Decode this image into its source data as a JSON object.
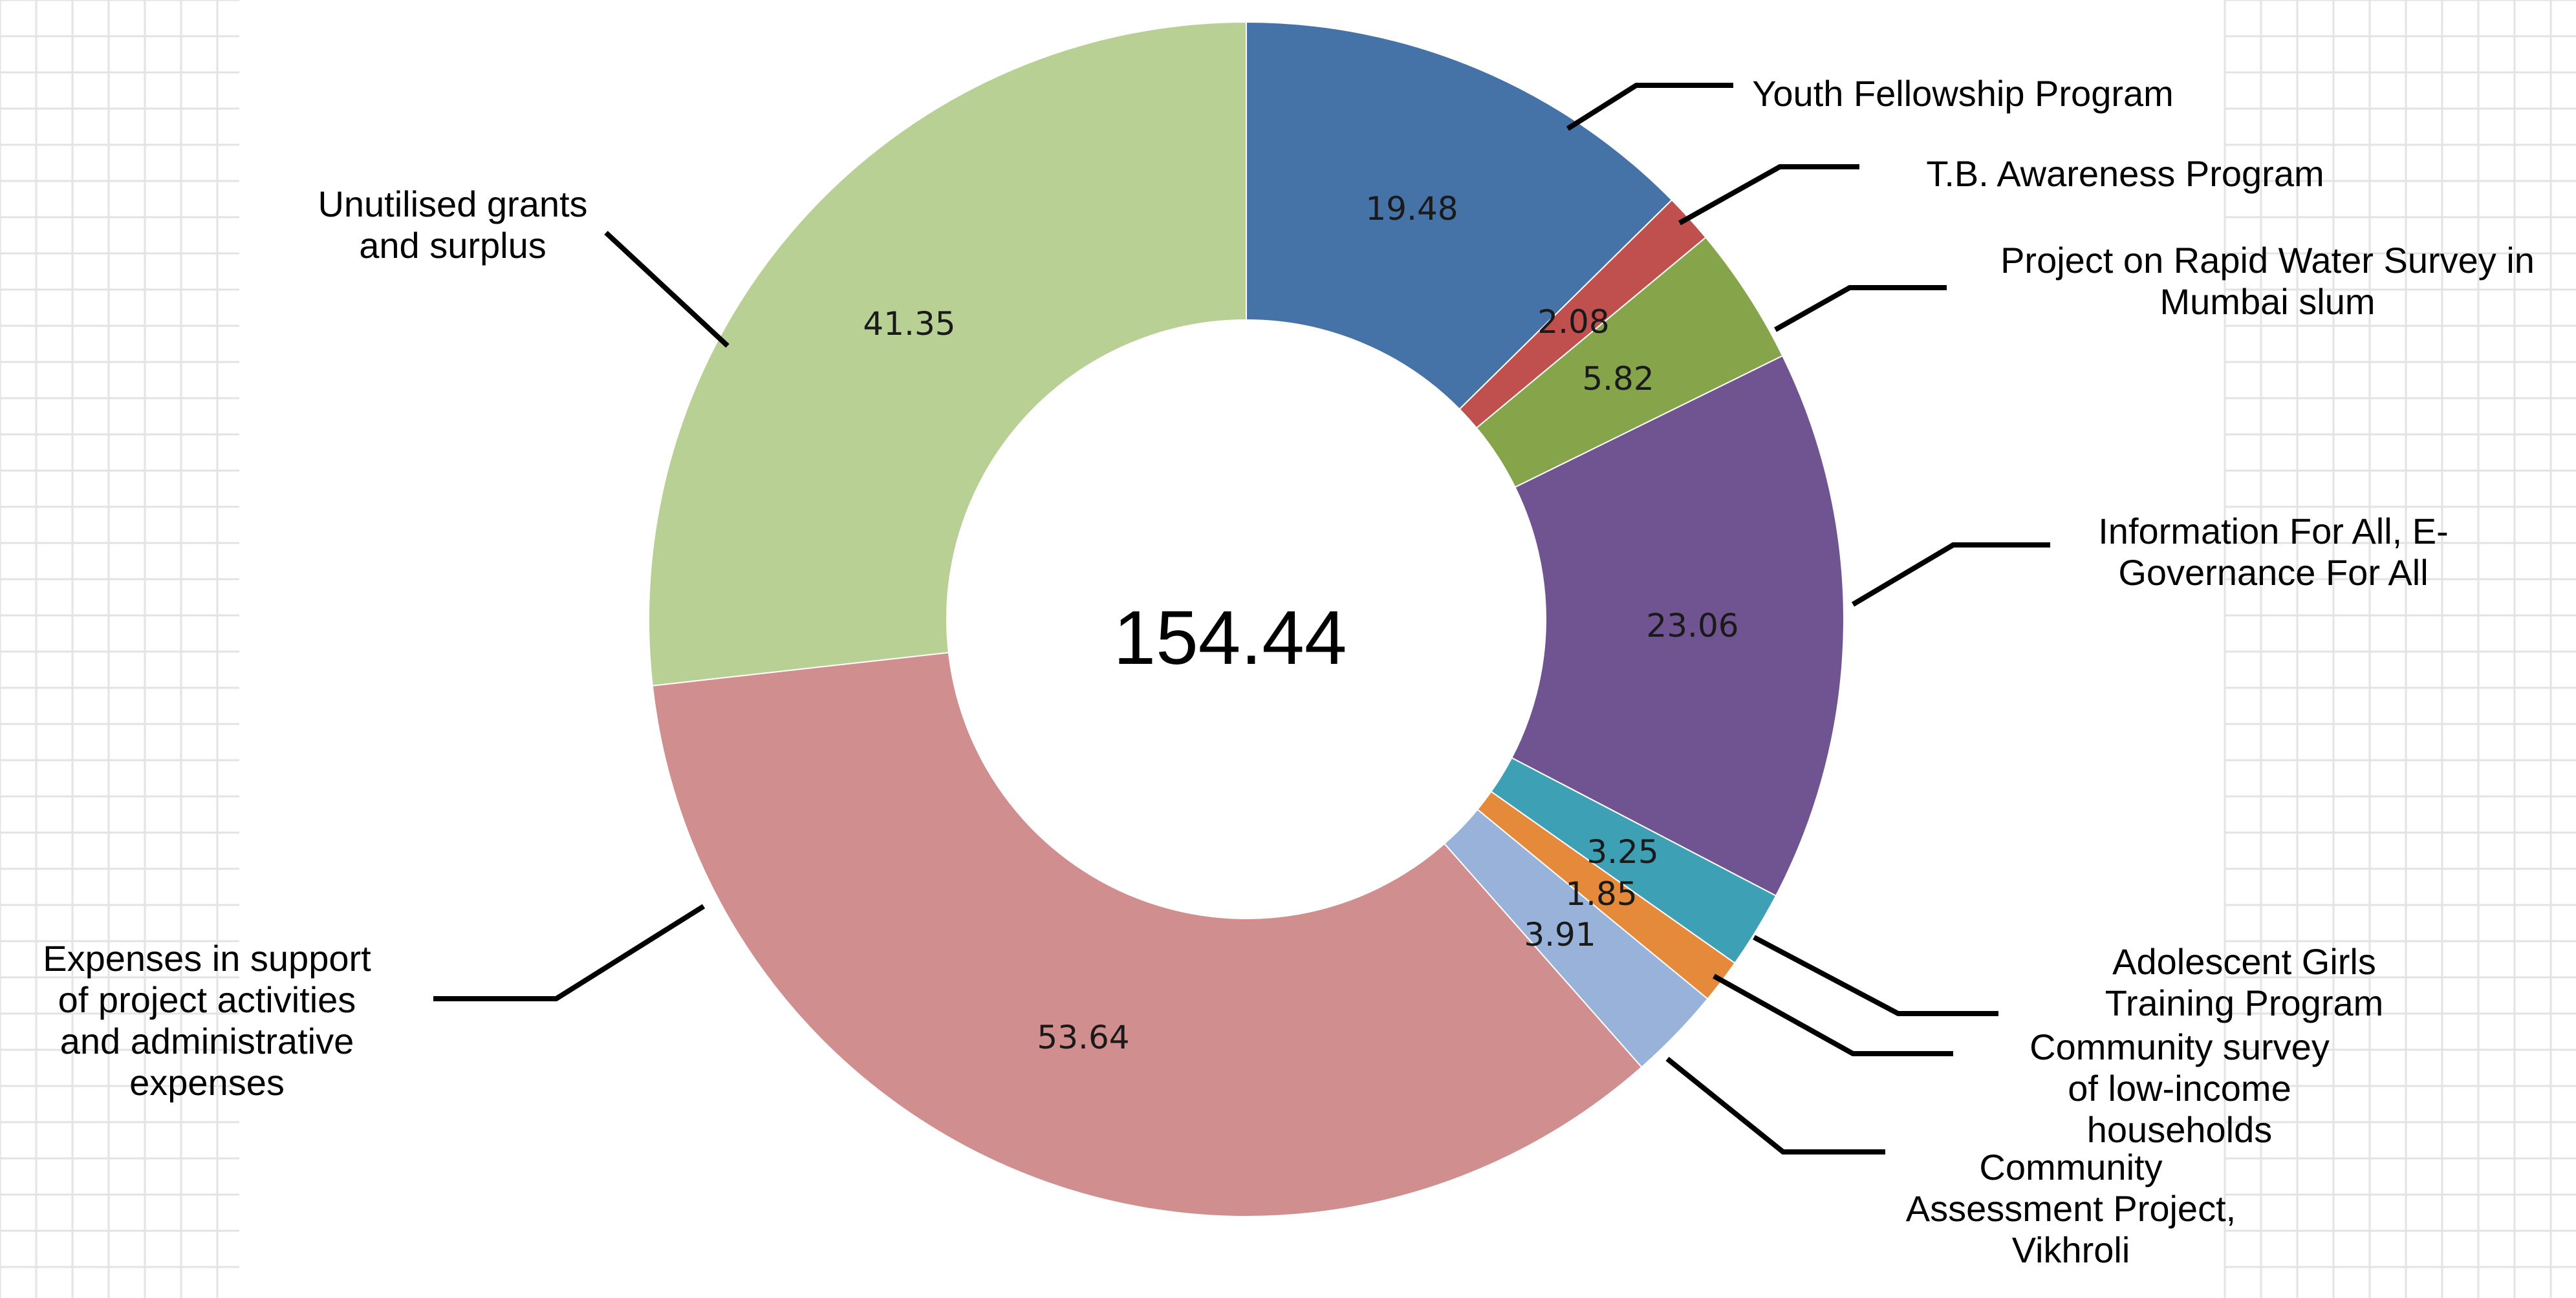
{
  "chart_data": {
    "type": "pie",
    "variant": "donut",
    "center_label": "154.44",
    "slices": [
      {
        "label": [
          "Youth Fellowship Program"
        ],
        "value": 19.48,
        "value_label": "19.48",
        "color": "#4572A7"
      },
      {
        "label": [
          "T.B. Awareness Program"
        ],
        "value": 2.08,
        "value_label": "2.08",
        "color": "#C0504D"
      },
      {
        "label": [
          "Project on Rapid Water Survey in",
          "Mumbai slum"
        ],
        "value": 5.82,
        "value_label": "5.82",
        "color": "#86A44A"
      },
      {
        "label": [
          "Information For All, E-",
          "Governance For All"
        ],
        "value": 23.06,
        "value_label": "23.06",
        "color": "#6F5491"
      },
      {
        "label": [
          "Adolescent Girls",
          "Training Program"
        ],
        "value": 3.25,
        "value_label": "3.25",
        "color": "#3DA0B5"
      },
      {
        "label": [
          "Community survey",
          "of low-income",
          "households"
        ],
        "value": 1.85,
        "value_label": "1.85",
        "color": "#E58A3A"
      },
      {
        "label": [
          "Community",
          "Assessment Project,",
          "Vikhroli"
        ],
        "value": 3.91,
        "value_label": "3.91",
        "color": "#98B2DA"
      },
      {
        "label": [
          "Expenses in support",
          "of project activities",
          "and administrative",
          "expenses"
        ],
        "value": 53.64,
        "value_label": "53.64",
        "color": "#D08F8E"
      },
      {
        "label": [
          "Unutilised grants",
          "and surplus"
        ],
        "value": 41.35,
        "value_label": "41.35",
        "color": "#B9D095"
      }
    ],
    "background_grid": true
  }
}
